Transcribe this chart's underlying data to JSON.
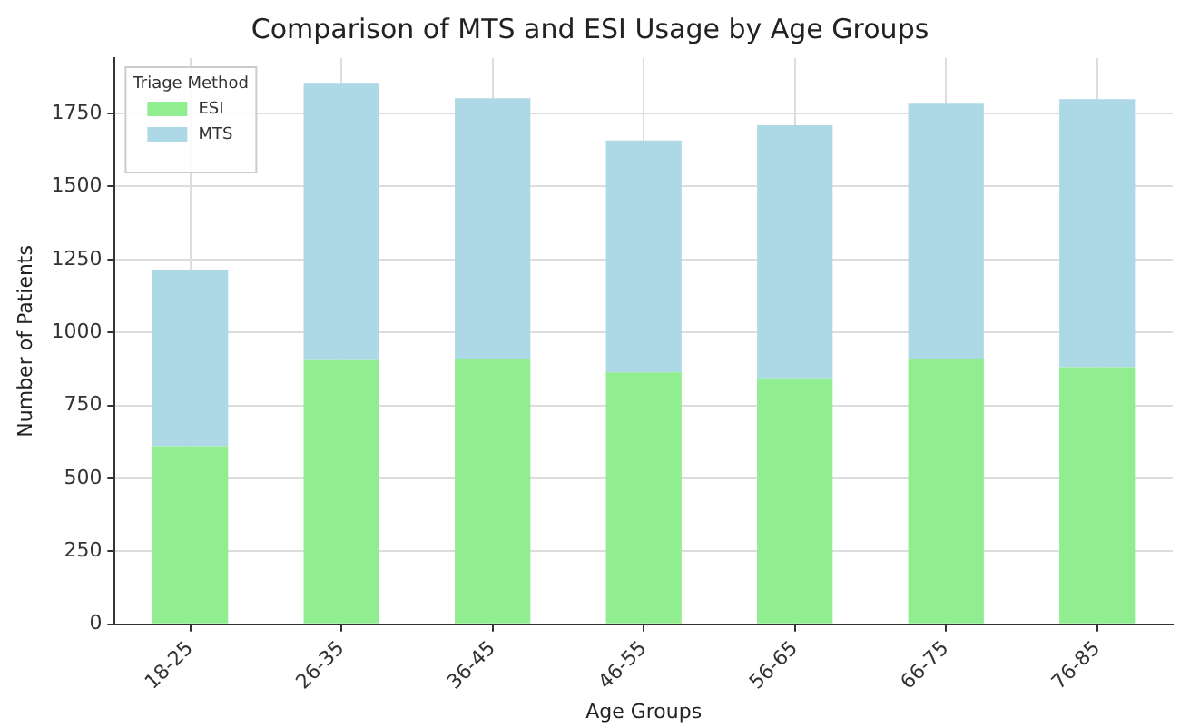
{
  "chart_data": {
    "type": "bar",
    "title": "Comparison of MTS and ESI Usage by Age Groups",
    "xlabel": "Age Groups",
    "ylabel": "Number of Patients",
    "legend_title": "Triage Method",
    "categories": [
      "18-25",
      "26-35",
      "36-45",
      "46-55",
      "56-65",
      "66-75",
      "76-85"
    ],
    "series": [
      {
        "name": "ESI",
        "color": "#90ee90",
        "values": [
          610,
          905,
          907,
          863,
          843,
          909,
          881
        ]
      },
      {
        "name": "MTS",
        "color": "#add8e6",
        "values": [
          605,
          950,
          895,
          795,
          867,
          875,
          918
        ]
      }
    ],
    "stacked": true,
    "ylim": [
      0,
      1940
    ],
    "yticks": [
      0,
      250,
      500,
      750,
      1000,
      1250,
      1500,
      1750
    ],
    "grid": true,
    "legend": "top left"
  }
}
